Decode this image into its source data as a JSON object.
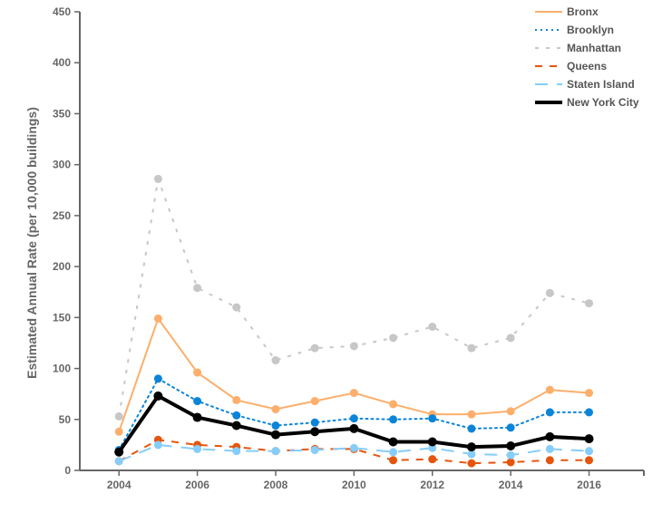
{
  "chart_data": {
    "type": "line",
    "title": "",
    "xlabel": "",
    "ylabel": "Estimated Annual Rate (per 10,000 buildings)",
    "xlim": [
      2003,
      2017.4
    ],
    "ylim": [
      0,
      450
    ],
    "x_ticks": [
      2004,
      2006,
      2008,
      2010,
      2012,
      2014,
      2016
    ],
    "y_ticks": [
      0,
      50,
      100,
      150,
      200,
      250,
      300,
      350,
      400,
      450
    ],
    "grid": false,
    "legend_position": "top-right",
    "x": [
      2004,
      2005,
      2006,
      2007,
      2008,
      2009,
      2010,
      2011,
      2012,
      2013,
      2014,
      2015,
      2016
    ],
    "series": [
      {
        "name": "Bronx",
        "color": "#fdae6b",
        "dash": "solid",
        "width": 2,
        "values": [
          38,
          149,
          96,
          69,
          60,
          68,
          76,
          65,
          55,
          55,
          58,
          79,
          76
        ]
      },
      {
        "name": "Brooklyn",
        "color": "#0a84d8",
        "dash": "dotted",
        "width": 2,
        "values": [
          20,
          90,
          68,
          54,
          44,
          47,
          51,
          50,
          51,
          41,
          42,
          57,
          57
        ]
      },
      {
        "name": "Manhattan",
        "color": "#c7c7c7",
        "dash": "dashed-short",
        "width": 2,
        "values": [
          53,
          286,
          179,
          160,
          108,
          120,
          122,
          130,
          141,
          120,
          130,
          174,
          164
        ]
      },
      {
        "name": "Queens",
        "color": "#e6550d",
        "dash": "dashed",
        "width": 2,
        "values": [
          9,
          30,
          25,
          23,
          19,
          21,
          21,
          10,
          11,
          7,
          8,
          10,
          10
        ]
      },
      {
        "name": "Staten Island",
        "color": "#86cdf9",
        "dash": "dashed-long",
        "width": 2,
        "values": [
          9,
          25,
          21,
          19,
          19,
          20,
          22,
          18,
          22,
          16,
          15,
          21,
          19
        ]
      },
      {
        "name": "New York City",
        "color": "#000000",
        "dash": "solid",
        "width": 4,
        "values": [
          18,
          73,
          52,
          44,
          35,
          38,
          41,
          28,
          28,
          23,
          24,
          33,
          31
        ]
      }
    ]
  }
}
